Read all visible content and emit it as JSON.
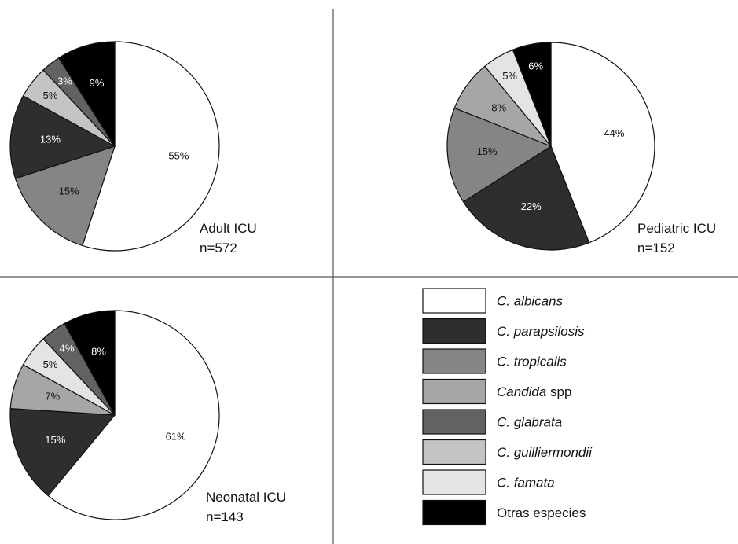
{
  "chart_data": [
    {
      "type": "pie",
      "caption_line1": "Adult ICU",
      "caption_line2": "n=572",
      "slices": [
        {
          "series": "albicans",
          "value": 55,
          "label": "55%"
        },
        {
          "series": "tropicalis",
          "value": 15,
          "label": "15%"
        },
        {
          "series": "parapsilosis",
          "value": 13,
          "label": "13%"
        },
        {
          "series": "guilliermondii",
          "value": 5,
          "label": "5%"
        },
        {
          "series": "glabrata",
          "value": 3,
          "label": "3%"
        },
        {
          "series": "otras",
          "value": 9,
          "label": "9%"
        }
      ]
    },
    {
      "type": "pie",
      "caption_line1": "Pediatric ICU",
      "caption_line2": "n=152",
      "slices": [
        {
          "series": "albicans",
          "value": 44,
          "label": "44%"
        },
        {
          "series": "parapsilosis",
          "value": 22,
          "label": "22%"
        },
        {
          "series": "tropicalis",
          "value": 15,
          "label": "15%"
        },
        {
          "series": "spp",
          "value": 8,
          "label": "8%"
        },
        {
          "series": "famata",
          "value": 5,
          "label": "5%"
        },
        {
          "series": "otras",
          "value": 6,
          "label": "6%"
        }
      ]
    },
    {
      "type": "pie",
      "caption_line1": "Neonatal ICU",
      "caption_line2": "n=143",
      "slices": [
        {
          "series": "albicans",
          "value": 61,
          "label": "61%"
        },
        {
          "series": "parapsilosis",
          "value": 15,
          "label": "15%"
        },
        {
          "series": "spp",
          "value": 7,
          "label": "7%"
        },
        {
          "series": "famata",
          "value": 5,
          "label": "5%"
        },
        {
          "series": "glabrata",
          "value": 4,
          "label": "4%"
        },
        {
          "series": "otras",
          "value": 8,
          "label": "8%"
        }
      ]
    }
  ],
  "legend": [
    {
      "key": "albicans",
      "italic": "C. albicans",
      "plain": "",
      "color": "#ffffff"
    },
    {
      "key": "parapsilosis",
      "italic": "C. parapsilosis",
      "plain": "",
      "color": "#2e2e2e"
    },
    {
      "key": "tropicalis",
      "italic": "C. tropicalis",
      "plain": "",
      "color": "#858585"
    },
    {
      "key": "spp",
      "italic": "Candida",
      "plain": " spp",
      "color": "#a6a6a6"
    },
    {
      "key": "glabrata",
      "italic": "C. glabrata",
      "plain": "",
      "color": "#626262"
    },
    {
      "key": "guilliermondii",
      "italic": "C. guilliermondii",
      "plain": "",
      "color": "#c4c4c4"
    },
    {
      "key": "famata",
      "italic": "C. famata",
      "plain": "",
      "color": "#e4e4e4"
    },
    {
      "key": "otras",
      "italic": "",
      "plain": "Otras especies",
      "color": "#000000"
    }
  ]
}
